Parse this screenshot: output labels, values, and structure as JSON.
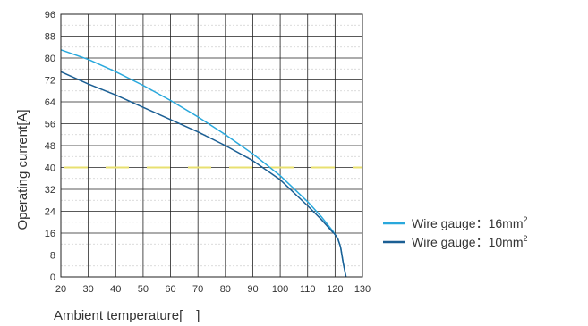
{
  "chart_data": {
    "type": "line",
    "xlabel": "Ambient temperature[　]",
    "ylabel": "Operating current[A]",
    "x_ticks": [
      "20",
      "30",
      "40",
      "50",
      "60",
      "70",
      "80",
      "90",
      "100",
      "110",
      "120",
      "130"
    ],
    "y_ticks": [
      "0",
      "8",
      "16",
      "24",
      "32",
      "40",
      "48",
      "56",
      "64",
      "72",
      "80",
      "88",
      "96"
    ],
    "xlim": [
      20,
      130
    ],
    "ylim": [
      0,
      96
    ],
    "grid": true,
    "legend_position": "right",
    "reference_line": {
      "y": 40,
      "color": "#e8e070",
      "style": "dashed"
    },
    "series": [
      {
        "name": "Wire gauge：16mm",
        "unit_sup": "2",
        "color": "#29a8dc",
        "x": [
          20,
          30,
          40,
          50,
          60,
          70,
          80,
          90,
          100,
          110,
          115,
          119,
          120,
          121,
          122,
          123,
          124
        ],
        "y": [
          83,
          79.5,
          75,
          70,
          64.5,
          58.5,
          52,
          45,
          37,
          27.5,
          22,
          17,
          15.5,
          14,
          11,
          5,
          0
        ]
      },
      {
        "name": "Wire gauge：10mm",
        "unit_sup": "2",
        "color": "#1b5f94",
        "x": [
          20,
          30,
          40,
          50,
          60,
          70,
          80,
          90,
          100,
          110,
          115,
          119,
          120,
          121,
          122,
          123,
          124
        ],
        "y": [
          75,
          70.5,
          66.5,
          62,
          57.5,
          53,
          48,
          42.5,
          35.5,
          26,
          21,
          16.5,
          15.5,
          14,
          11,
          5,
          0
        ]
      }
    ]
  }
}
